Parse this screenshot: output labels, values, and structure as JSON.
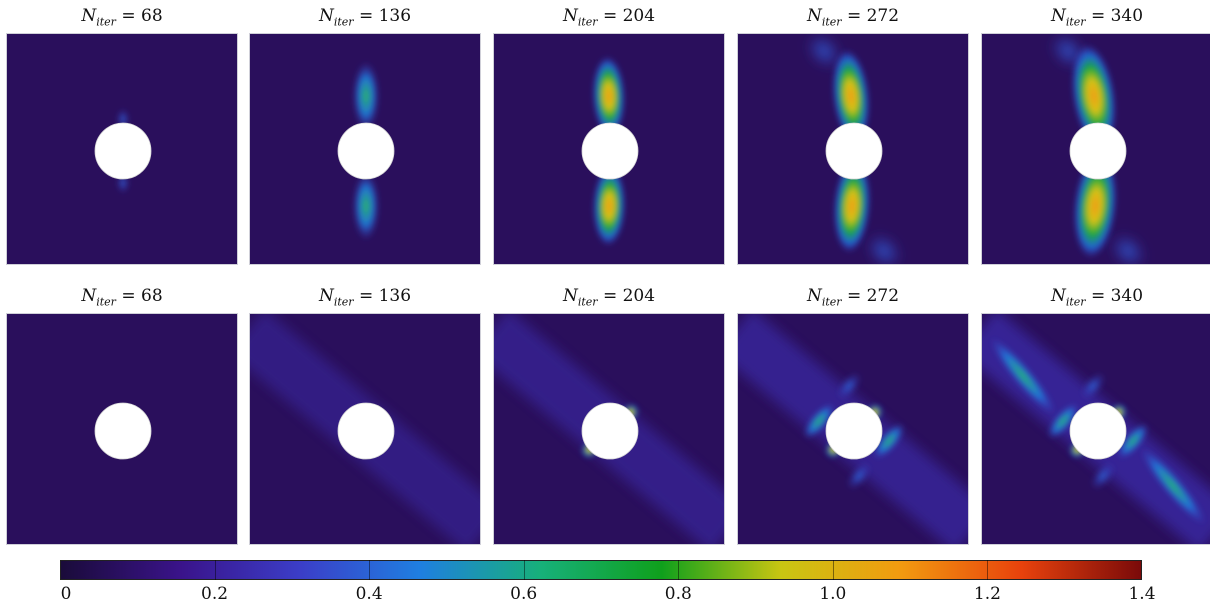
{
  "panels": [
    {
      "row": 1,
      "col": 1,
      "symbol": "N",
      "subscript": "iter",
      "eq": "= 68",
      "pattern": "vertical",
      "stage": 1
    },
    {
      "row": 1,
      "col": 2,
      "symbol": "N",
      "subscript": "iter",
      "eq": "= 136",
      "pattern": "vertical",
      "stage": 2
    },
    {
      "row": 1,
      "col": 3,
      "symbol": "N",
      "subscript": "iter",
      "eq": "= 204",
      "pattern": "vertical",
      "stage": 3
    },
    {
      "row": 1,
      "col": 4,
      "symbol": "N",
      "subscript": "iter",
      "eq": "= 272",
      "pattern": "vertical",
      "stage": 4
    },
    {
      "row": 1,
      "col": 5,
      "symbol": "N",
      "subscript": "iter",
      "eq": "= 340",
      "pattern": "vertical",
      "stage": 5
    },
    {
      "row": 2,
      "col": 1,
      "symbol": "N",
      "subscript": "iter",
      "eq": "= 68",
      "pattern": "diagonal",
      "stage": 1
    },
    {
      "row": 2,
      "col": 2,
      "symbol": "N",
      "subscript": "iter",
      "eq": "= 136",
      "pattern": "diagonal",
      "stage": 2
    },
    {
      "row": 2,
      "col": 3,
      "symbol": "N",
      "subscript": "iter",
      "eq": "= 204",
      "pattern": "diagonal",
      "stage": 3
    },
    {
      "row": 2,
      "col": 4,
      "symbol": "N",
      "subscript": "iter",
      "eq": "= 272",
      "pattern": "diagonal",
      "stage": 4
    },
    {
      "row": 2,
      "col": 5,
      "symbol": "N",
      "subscript": "iter",
      "eq": "= 340",
      "pattern": "diagonal",
      "stage": 5
    }
  ],
  "colorbar": {
    "min": 0,
    "max": 1.4,
    "ticks": [
      "0",
      "0.2",
      "0.4",
      "0.6",
      "0.8",
      "1.0",
      "1.2",
      "1.4"
    ],
    "colormap": [
      "#1a0b3a",
      "#3a138a",
      "#3b3ec8",
      "#1f7fe0",
      "#17b07a",
      "#0fa01c",
      "#c9c512",
      "#f29a10",
      "#e8420c",
      "#7a0a0a"
    ]
  },
  "colors": {
    "background": "#2a0f5c",
    "hole": "#ffffff"
  }
}
